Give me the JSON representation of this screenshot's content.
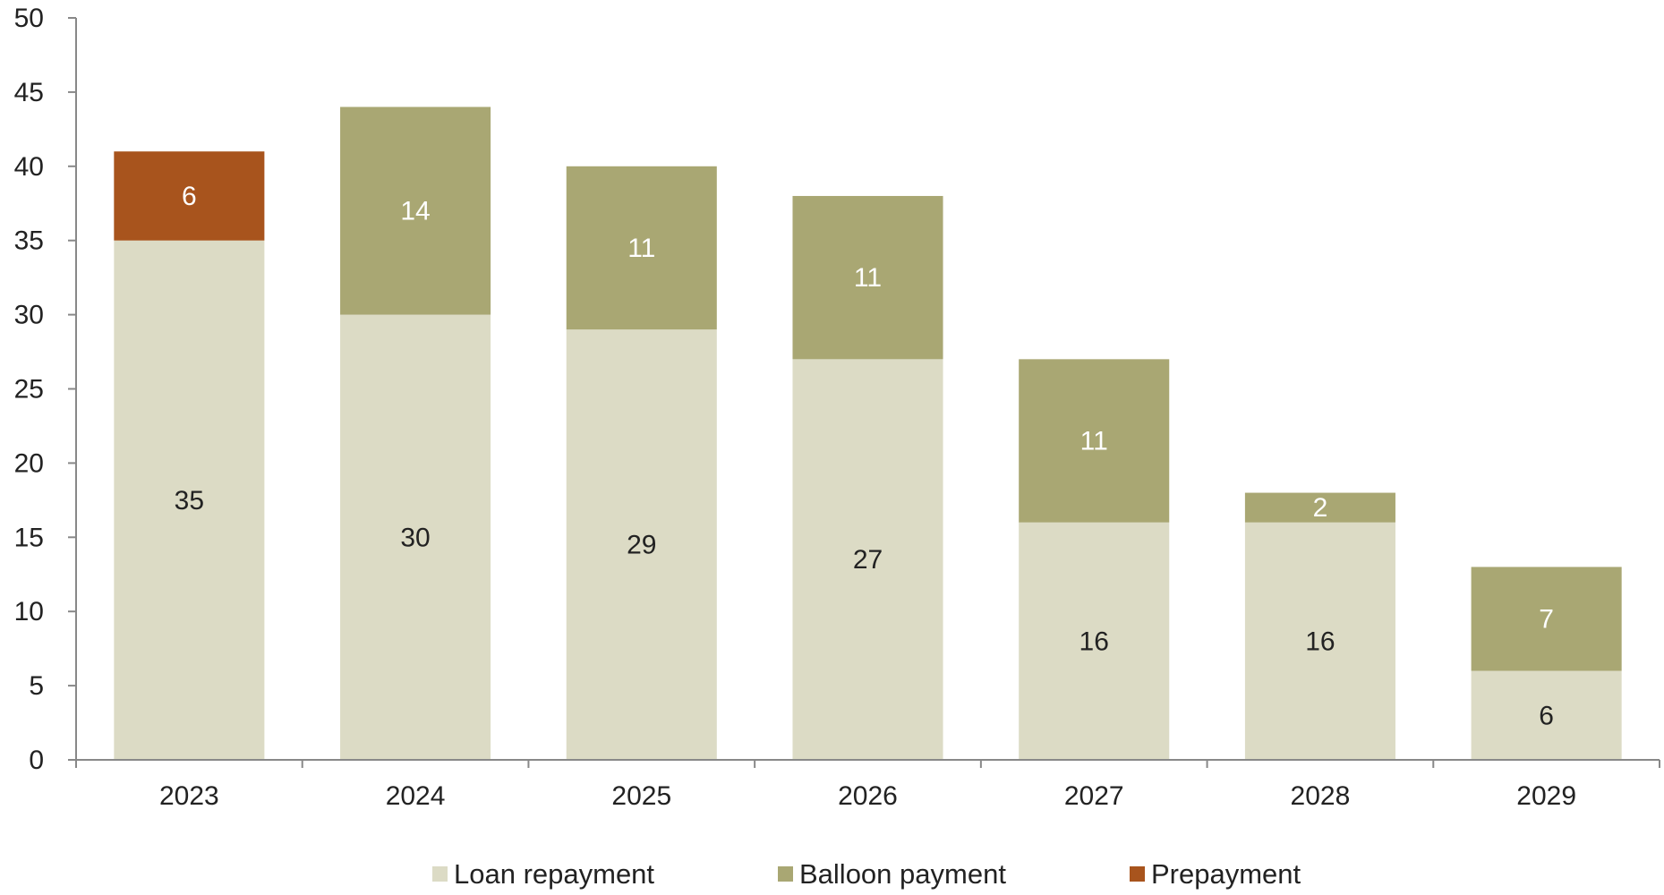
{
  "chart_data": {
    "type": "bar",
    "stacked": true,
    "categories": [
      "2023",
      "2024",
      "2025",
      "2026",
      "2027",
      "2028",
      "2029"
    ],
    "series": [
      {
        "name": "Loan repayment",
        "values": [
          35,
          30,
          29,
          27,
          16,
          16,
          6
        ],
        "color": "#dcdbc5",
        "label_color": "#222222"
      },
      {
        "name": "Balloon payment",
        "values": [
          0,
          14,
          11,
          11,
          11,
          2,
          7
        ],
        "color": "#a9a773",
        "label_color": "#ffffff"
      },
      {
        "name": "Prepayment",
        "values": [
          6,
          0,
          0,
          0,
          0,
          0,
          0
        ],
        "color": "#a8541d",
        "label_color": "#ffffff"
      }
    ],
    "yticks": [
      "0",
      "5",
      "10",
      "15",
      "20",
      "25",
      "30",
      "35",
      "40",
      "45",
      "50"
    ],
    "ylim": [
      0,
      50
    ],
    "grid": false,
    "legend_position": "bottom"
  }
}
